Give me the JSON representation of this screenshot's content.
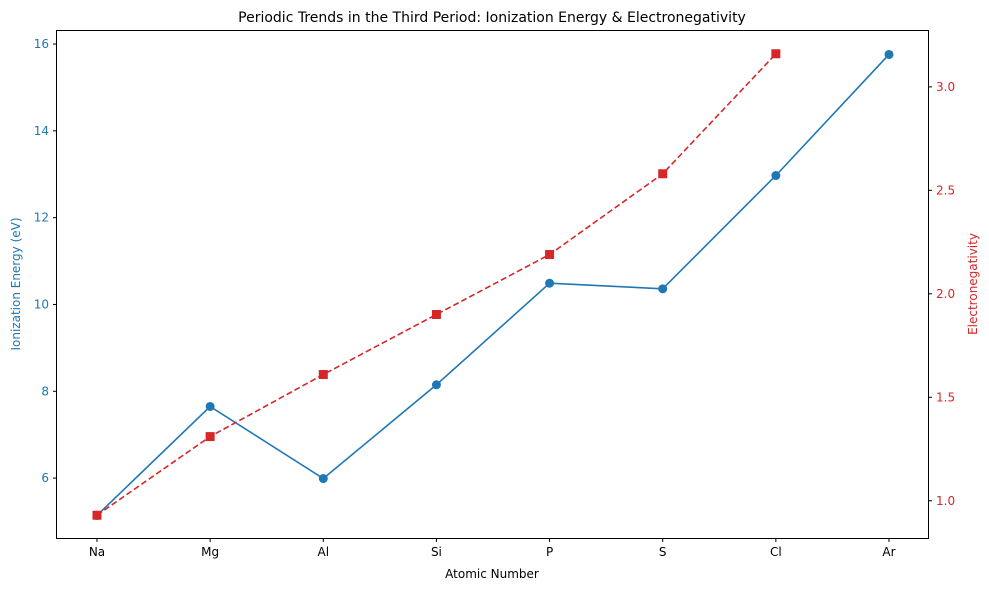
{
  "chart_data": {
    "type": "line",
    "title": "Periodic Trends in the Third Period: Ionization Energy & Electronegativity",
    "xlabel": "Atomic Number",
    "categories": [
      "Na",
      "Mg",
      "Al",
      "Si",
      "P",
      "S",
      "Cl",
      "Ar"
    ],
    "y_left": {
      "label": "Ionization Energy (eV)",
      "color": "#1f77b4",
      "ticks": [
        6,
        8,
        10,
        12,
        14,
        16
      ],
      "range": [
        4.62,
        16.3
      ]
    },
    "y_right": {
      "label": "Electronegativity",
      "color": "#d62728",
      "ticks": [
        1.0,
        1.5,
        2.0,
        2.5,
        3.0
      ],
      "tick_labels": [
        "1.0",
        "1.5",
        "2.0",
        "2.5",
        "3.0"
      ],
      "range": [
        0.82,
        3.27
      ]
    },
    "series": [
      {
        "axis": "left",
        "color": "#1f77b4",
        "line_style": "solid",
        "marker": "circle",
        "values": [
          5.14,
          7.65,
          5.99,
          8.15,
          10.49,
          10.36,
          12.97,
          15.76
        ]
      },
      {
        "axis": "right",
        "color": "#d62728",
        "line_style": "dashed",
        "marker": "square",
        "values": [
          0.93,
          1.31,
          1.61,
          1.9,
          2.19,
          2.58,
          3.16,
          null
        ]
      }
    ],
    "grid": false,
    "legend": false
  }
}
